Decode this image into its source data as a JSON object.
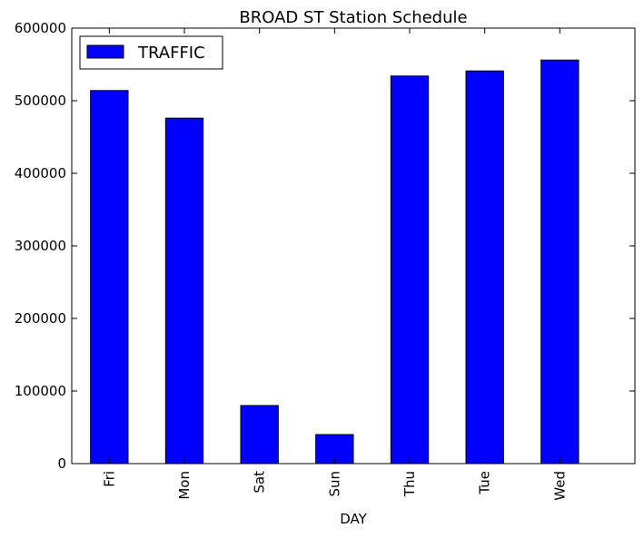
{
  "chart_data": {
    "type": "bar",
    "title": "BROAD ST Station Schedule",
    "xlabel": "DAY",
    "ylabel": "",
    "categories": [
      "Fri",
      "Mon",
      "Sat",
      "Sun",
      "Thu",
      "Tue",
      "Wed"
    ],
    "series": [
      {
        "name": "TRAFFIC",
        "values": [
          514000,
          476000,
          80000,
          40000,
          534000,
          541000,
          556000
        ],
        "color": "#0000ff"
      }
    ],
    "ylim": [
      0,
      600000
    ],
    "yticks": [
      0,
      100000,
      200000,
      300000,
      400000,
      500000,
      600000
    ],
    "ytick_labels": [
      "0",
      "100000",
      "200000",
      "300000",
      "400000",
      "500000",
      "600000"
    ],
    "grid": false,
    "legend_position": "top-left"
  }
}
